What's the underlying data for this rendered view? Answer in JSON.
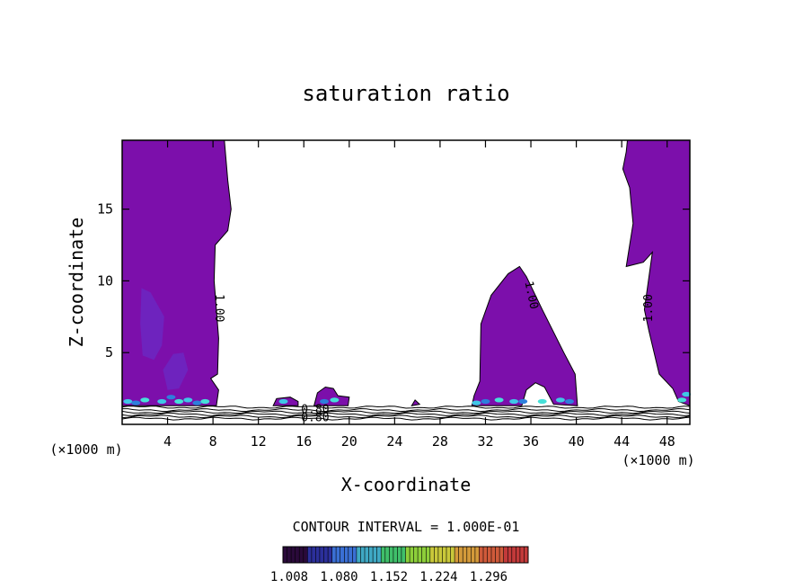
{
  "chart_data": {
    "type": "contour",
    "title": "saturation ratio",
    "xlabel": "X-coordinate",
    "ylabel": "Z-coordinate",
    "x_unit_left": "(×1000 m)",
    "x_unit_right": "(×1000 m)",
    "xlim": [
      0,
      50
    ],
    "ylim": [
      0,
      19.8
    ],
    "x_ticks": [
      4,
      8,
      12,
      16,
      20,
      24,
      28,
      32,
      36,
      40,
      44,
      48
    ],
    "y_ticks": [
      5,
      10,
      15
    ],
    "contour_labels": [
      "1.00",
      "1.00",
      "1.00",
      "0.80",
      "0.80"
    ],
    "contour_interval_text": "CONTOUR INTERVAL = 1.000E-01",
    "colorbar": {
      "ticks": [
        "1.008",
        "1.080",
        "1.152",
        "1.224",
        "1.296"
      ],
      "colors": [
        "#2a0a3a",
        "#2b2f9a",
        "#3a6fd4",
        "#3fa9c4",
        "#3fbf6a",
        "#8dcf3a",
        "#c9c83a",
        "#d49a3a",
        "#cf5a3a",
        "#c23a3a"
      ]
    },
    "fill_color": "#7c0fab",
    "regions": [
      {
        "name": "left-column",
        "points": [
          [
            0,
            19.8
          ],
          [
            9.0,
            19.8
          ],
          [
            9.3,
            17
          ],
          [
            9.6,
            15
          ],
          [
            9.3,
            13.5
          ],
          [
            8.2,
            12.5
          ],
          [
            8.1,
            10
          ],
          [
            8.5,
            6
          ],
          [
            8.4,
            3.5
          ],
          [
            7.8,
            3.2
          ],
          [
            8.5,
            2.4
          ],
          [
            8.3,
            1.3
          ],
          [
            0,
            1.3
          ]
        ]
      },
      {
        "name": "right-column",
        "points": [
          [
            44.5,
            19.8
          ],
          [
            50,
            19.8
          ],
          [
            50,
            1.3
          ],
          [
            49.0,
            1.6
          ],
          [
            48.5,
            2.5
          ],
          [
            47.3,
            3.5
          ],
          [
            46.4,
            6.5
          ],
          [
            46.0,
            8.0
          ],
          [
            46.7,
            12.0
          ],
          [
            45.9,
            11.3
          ],
          [
            44.4,
            11.0
          ],
          [
            45.0,
            14.0
          ],
          [
            44.7,
            16.5
          ],
          [
            44.1,
            17.8
          ],
          [
            44.4,
            19.0
          ]
        ]
      },
      {
        "name": "middle-mound",
        "points": [
          [
            30.8,
            1.3
          ],
          [
            31.0,
            2.0
          ],
          [
            31.5,
            3.0
          ],
          [
            31.6,
            7.0
          ],
          [
            32.5,
            9.0
          ],
          [
            34.0,
            10.5
          ],
          [
            35.0,
            11.0
          ],
          [
            35.6,
            10.3
          ],
          [
            37.0,
            8.0
          ],
          [
            38.9,
            5.0
          ],
          [
            39.9,
            3.5
          ],
          [
            40.1,
            1.3
          ],
          [
            38.0,
            1.4
          ],
          [
            37.2,
            2.6
          ],
          [
            36.4,
            2.9
          ],
          [
            35.6,
            2.4
          ],
          [
            35.2,
            1.3
          ]
        ]
      },
      {
        "name": "blob-14",
        "points": [
          [
            13.3,
            1.3
          ],
          [
            13.6,
            1.8
          ],
          [
            14.8,
            1.9
          ],
          [
            15.5,
            1.6
          ],
          [
            15.5,
            1.3
          ]
        ]
      },
      {
        "name": "blob-18",
        "points": [
          [
            16.9,
            1.3
          ],
          [
            17.2,
            2.2
          ],
          [
            17.9,
            2.6
          ],
          [
            18.6,
            2.5
          ],
          [
            19.0,
            2.0
          ],
          [
            20.0,
            1.9
          ],
          [
            19.9,
            1.3
          ]
        ]
      },
      {
        "name": "blob-26",
        "points": [
          [
            25.5,
            1.3
          ],
          [
            25.8,
            1.7
          ],
          [
            26.2,
            1.4
          ]
        ]
      }
    ],
    "plumes": [
      {
        "name": "plume-1",
        "points": [
          [
            1.7,
            9.5
          ],
          [
            2.5,
            9.2
          ],
          [
            3.7,
            7.5
          ],
          [
            3.5,
            5.5
          ],
          [
            2.8,
            4.5
          ],
          [
            1.8,
            4.8
          ],
          [
            1.6,
            7.0
          ]
        ]
      },
      {
        "name": "plume-2",
        "points": [
          [
            3.6,
            3.8
          ],
          [
            4.5,
            4.9
          ],
          [
            5.4,
            5.0
          ],
          [
            5.8,
            3.8
          ],
          [
            5.0,
            2.5
          ],
          [
            4.0,
            2.4
          ]
        ]
      }
    ],
    "strata_z": [
      1.2,
      1.0,
      0.85,
      0.7,
      0.55,
      0.4
    ]
  }
}
